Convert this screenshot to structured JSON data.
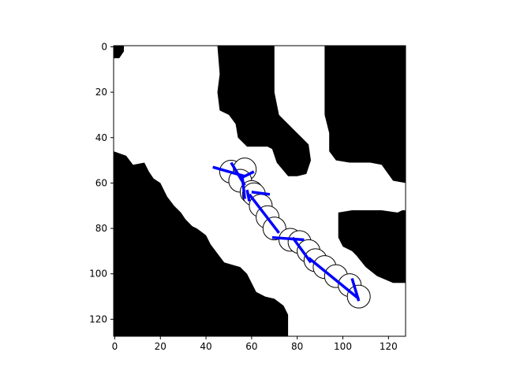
{
  "colors": {
    "obstacle": "#000000",
    "free_space": "#ffffff",
    "path": "#0000ff",
    "node_fill": "#ffffff",
    "node_edge": "#000000"
  },
  "chart_data": {
    "type": "image-with-path",
    "title": "",
    "xlabel": "",
    "ylabel": "",
    "xlim": [
      -0.5,
      127.5
    ],
    "ylim": [
      127.5,
      -0.5
    ],
    "xticks": [
      0,
      20,
      40,
      60,
      80,
      100,
      120
    ],
    "yticks": [
      0,
      20,
      40,
      60,
      80,
      100,
      120
    ],
    "xtick_labels": [
      "0",
      "20",
      "40",
      "60",
      "80",
      "100",
      "120"
    ],
    "ytick_labels": [
      "0",
      "20",
      "40",
      "60",
      "80",
      "100",
      "120"
    ],
    "grid": false,
    "legend": "none",
    "obstacles": [
      [
        [
          -0.5,
          -0.5
        ],
        [
          4,
          -0.5
        ],
        [
          4,
          2
        ],
        [
          2,
          5
        ],
        [
          -0.5,
          5
        ]
      ],
      [
        [
          45,
          -0.5
        ],
        [
          70,
          -0.5
        ],
        [
          70,
          20
        ],
        [
          72,
          30
        ],
        [
          80,
          38
        ],
        [
          85,
          43
        ],
        [
          86,
          50
        ],
        [
          84,
          56
        ],
        [
          80,
          57
        ],
        [
          76,
          57
        ],
        [
          71,
          51
        ],
        [
          69,
          45
        ],
        [
          67,
          44
        ],
        [
          58,
          44
        ],
        [
          54,
          40
        ],
        [
          53,
          34
        ],
        [
          50,
          30
        ],
        [
          46,
          28
        ],
        [
          45,
          20
        ],
        [
          46,
          12
        ]
      ],
      [
        [
          92,
          -0.5
        ],
        [
          127.5,
          -0.5
        ],
        [
          127.5,
          60
        ],
        [
          122,
          59
        ],
        [
          117,
          52
        ],
        [
          112,
          51
        ],
        [
          103,
          51
        ],
        [
          97,
          50
        ],
        [
          94,
          46
        ],
        [
          94,
          38
        ],
        [
          92,
          30
        ],
        [
          92,
          18
        ]
      ],
      [
        [
          98,
          73
        ],
        [
          104,
          72
        ],
        [
          117,
          72
        ],
        [
          124,
          73
        ],
        [
          126,
          72
        ],
        [
          127.5,
          72
        ],
        [
          127.5,
          104
        ],
        [
          122,
          104
        ],
        [
          115,
          101
        ],
        [
          110,
          97
        ],
        [
          106,
          92
        ],
        [
          104,
          90
        ],
        [
          100,
          88
        ],
        [
          98,
          84
        ]
      ],
      [
        [
          -0.5,
          46
        ],
        [
          5,
          48
        ],
        [
          8,
          52
        ],
        [
          13,
          51
        ],
        [
          15,
          55
        ],
        [
          17,
          58
        ],
        [
          20,
          60
        ],
        [
          23,
          66
        ],
        [
          26,
          70
        ],
        [
          29,
          73
        ],
        [
          31,
          76
        ],
        [
          34,
          79
        ],
        [
          36,
          80
        ],
        [
          40,
          83
        ],
        [
          42,
          87
        ],
        [
          45,
          91
        ],
        [
          48,
          95
        ],
        [
          55,
          97
        ],
        [
          58,
          100
        ],
        [
          60,
          104
        ],
        [
          62,
          108
        ],
        [
          66,
          110
        ],
        [
          70,
          111
        ],
        [
          74,
          114
        ],
        [
          76,
          118
        ],
        [
          76,
          127.5
        ],
        [
          -0.5,
          127.5
        ]
      ]
    ],
    "circles": [
      {
        "x": 51,
        "y": 55
      },
      {
        "x": 57,
        "y": 54
      },
      {
        "x": 55,
        "y": 59
      },
      {
        "x": 60,
        "y": 64
      },
      {
        "x": 61,
        "y": 65
      },
      {
        "x": 64,
        "y": 70
      },
      {
        "x": 67,
        "y": 75
      },
      {
        "x": 70,
        "y": 80
      },
      {
        "x": 77,
        "y": 85
      },
      {
        "x": 81,
        "y": 86
      },
      {
        "x": 85,
        "y": 90
      },
      {
        "x": 88,
        "y": 94
      },
      {
        "x": 92,
        "y": 97
      },
      {
        "x": 97,
        "y": 101
      },
      {
        "x": 103,
        "y": 105
      },
      {
        "x": 107,
        "y": 110
      }
    ],
    "circle_radius": 5,
    "segments": [
      [
        [
          43,
          53
        ],
        [
          57,
          57
        ]
      ],
      [
        [
          51,
          51
        ],
        [
          57,
          61
        ]
      ],
      [
        [
          55,
          58
        ],
        [
          61,
          55
        ]
      ],
      [
        [
          56,
          58
        ],
        [
          57,
          67
        ]
      ],
      [
        [
          58,
          63
        ],
        [
          59,
          68
        ]
      ],
      [
        [
          60,
          64
        ],
        [
          68,
          65
        ]
      ],
      [
        [
          59,
          65
        ],
        [
          72,
          82
        ]
      ],
      [
        [
          69,
          84
        ],
        [
          83,
          85
        ]
      ],
      [
        [
          78,
          84
        ],
        [
          86,
          95
        ]
      ],
      [
        [
          85,
          93
        ],
        [
          107,
          111
        ]
      ],
      [
        [
          104,
          102
        ],
        [
          107,
          112
        ]
      ]
    ]
  }
}
